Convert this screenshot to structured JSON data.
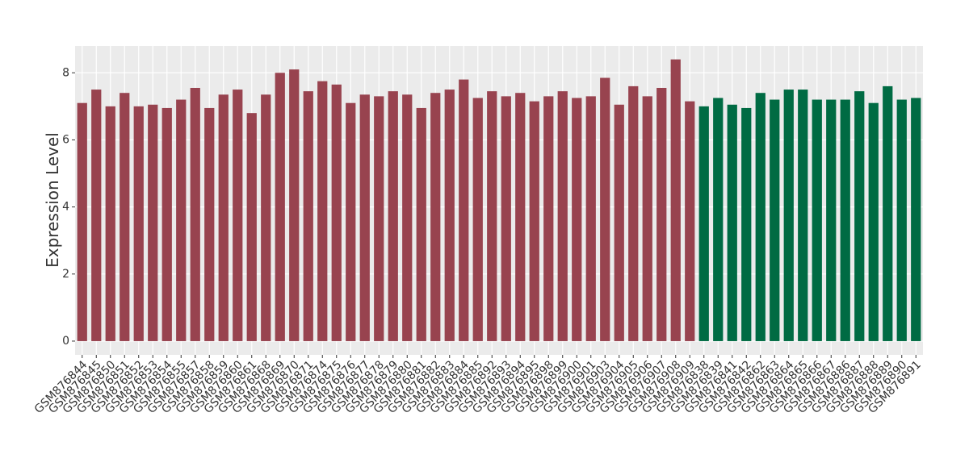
{
  "chart_data": {
    "type": "bar",
    "y_label": "Expression Level",
    "categories": [
      "GSM876844",
      "GSM876845",
      "GSM876850",
      "GSM876851",
      "GSM876852",
      "GSM876853",
      "GSM876854",
      "GSM876855",
      "GSM876857",
      "GSM876858",
      "GSM876859",
      "GSM876860",
      "GSM876861",
      "GSM876868",
      "GSM876869",
      "GSM876870",
      "GSM876871",
      "GSM876874",
      "GSM876875",
      "GSM876876",
      "GSM876877",
      "GSM876878",
      "GSM876879",
      "GSM876880",
      "GSM876881",
      "GSM876882",
      "GSM876883",
      "GSM876884",
      "GSM876885",
      "GSM876892",
      "GSM876893",
      "GSM876894",
      "GSM876895",
      "GSM876898",
      "GSM876899",
      "GSM876900",
      "GSM876901",
      "GSM876903",
      "GSM876904",
      "GSM876905",
      "GSM876906",
      "GSM876907",
      "GSM876908",
      "GSM876909",
      "GSM876838",
      "GSM876839",
      "GSM876841",
      "GSM876842",
      "GSM876862",
      "GSM876863",
      "GSM876864",
      "GSM876865",
      "GSM876866",
      "GSM876867",
      "GSM876886",
      "GSM876887",
      "GSM876888",
      "GSM876889",
      "GSM876890",
      "GSM876891"
    ],
    "values": [
      7.1,
      7.5,
      7.0,
      7.4,
      7.0,
      7.05,
      6.95,
      7.2,
      7.55,
      6.95,
      7.35,
      7.5,
      6.8,
      7.35,
      8.0,
      8.1,
      7.45,
      7.75,
      7.65,
      7.1,
      7.35,
      7.3,
      7.45,
      7.35,
      6.95,
      7.4,
      7.5,
      7.8,
      7.25,
      7.45,
      7.3,
      7.4,
      7.15,
      7.3,
      7.45,
      7.25,
      7.3,
      7.85,
      7.05,
      7.6,
      7.3,
      7.55,
      8.4,
      7.15,
      7.0,
      7.25,
      7.05,
      6.95,
      7.4,
      7.2,
      7.5,
      7.5,
      7.2,
      7.2,
      7.2,
      7.45,
      7.1,
      7.6,
      7.2,
      7.25
    ],
    "colors": [
      "#98434f",
      "#98434f",
      "#98434f",
      "#98434f",
      "#98434f",
      "#98434f",
      "#98434f",
      "#98434f",
      "#98434f",
      "#98434f",
      "#98434f",
      "#98434f",
      "#98434f",
      "#98434f",
      "#98434f",
      "#98434f",
      "#98434f",
      "#98434f",
      "#98434f",
      "#98434f",
      "#98434f",
      "#98434f",
      "#98434f",
      "#98434f",
      "#98434f",
      "#98434f",
      "#98434f",
      "#98434f",
      "#98434f",
      "#98434f",
      "#98434f",
      "#98434f",
      "#98434f",
      "#98434f",
      "#98434f",
      "#98434f",
      "#98434f",
      "#98434f",
      "#98434f",
      "#98434f",
      "#98434f",
      "#98434f",
      "#98434f",
      "#98434f",
      "#006b43",
      "#006b43",
      "#006b43",
      "#006b43",
      "#006b43",
      "#006b43",
      "#006b43",
      "#006b43",
      "#006b43",
      "#006b43",
      "#006b43",
      "#006b43",
      "#006b43",
      "#006b43",
      "#006b43",
      "#006b43"
    ],
    "ylim": [
      -0.41,
      8.8
    ],
    "yticks": [
      0,
      2,
      4,
      6,
      8
    ],
    "grid": true
  }
}
